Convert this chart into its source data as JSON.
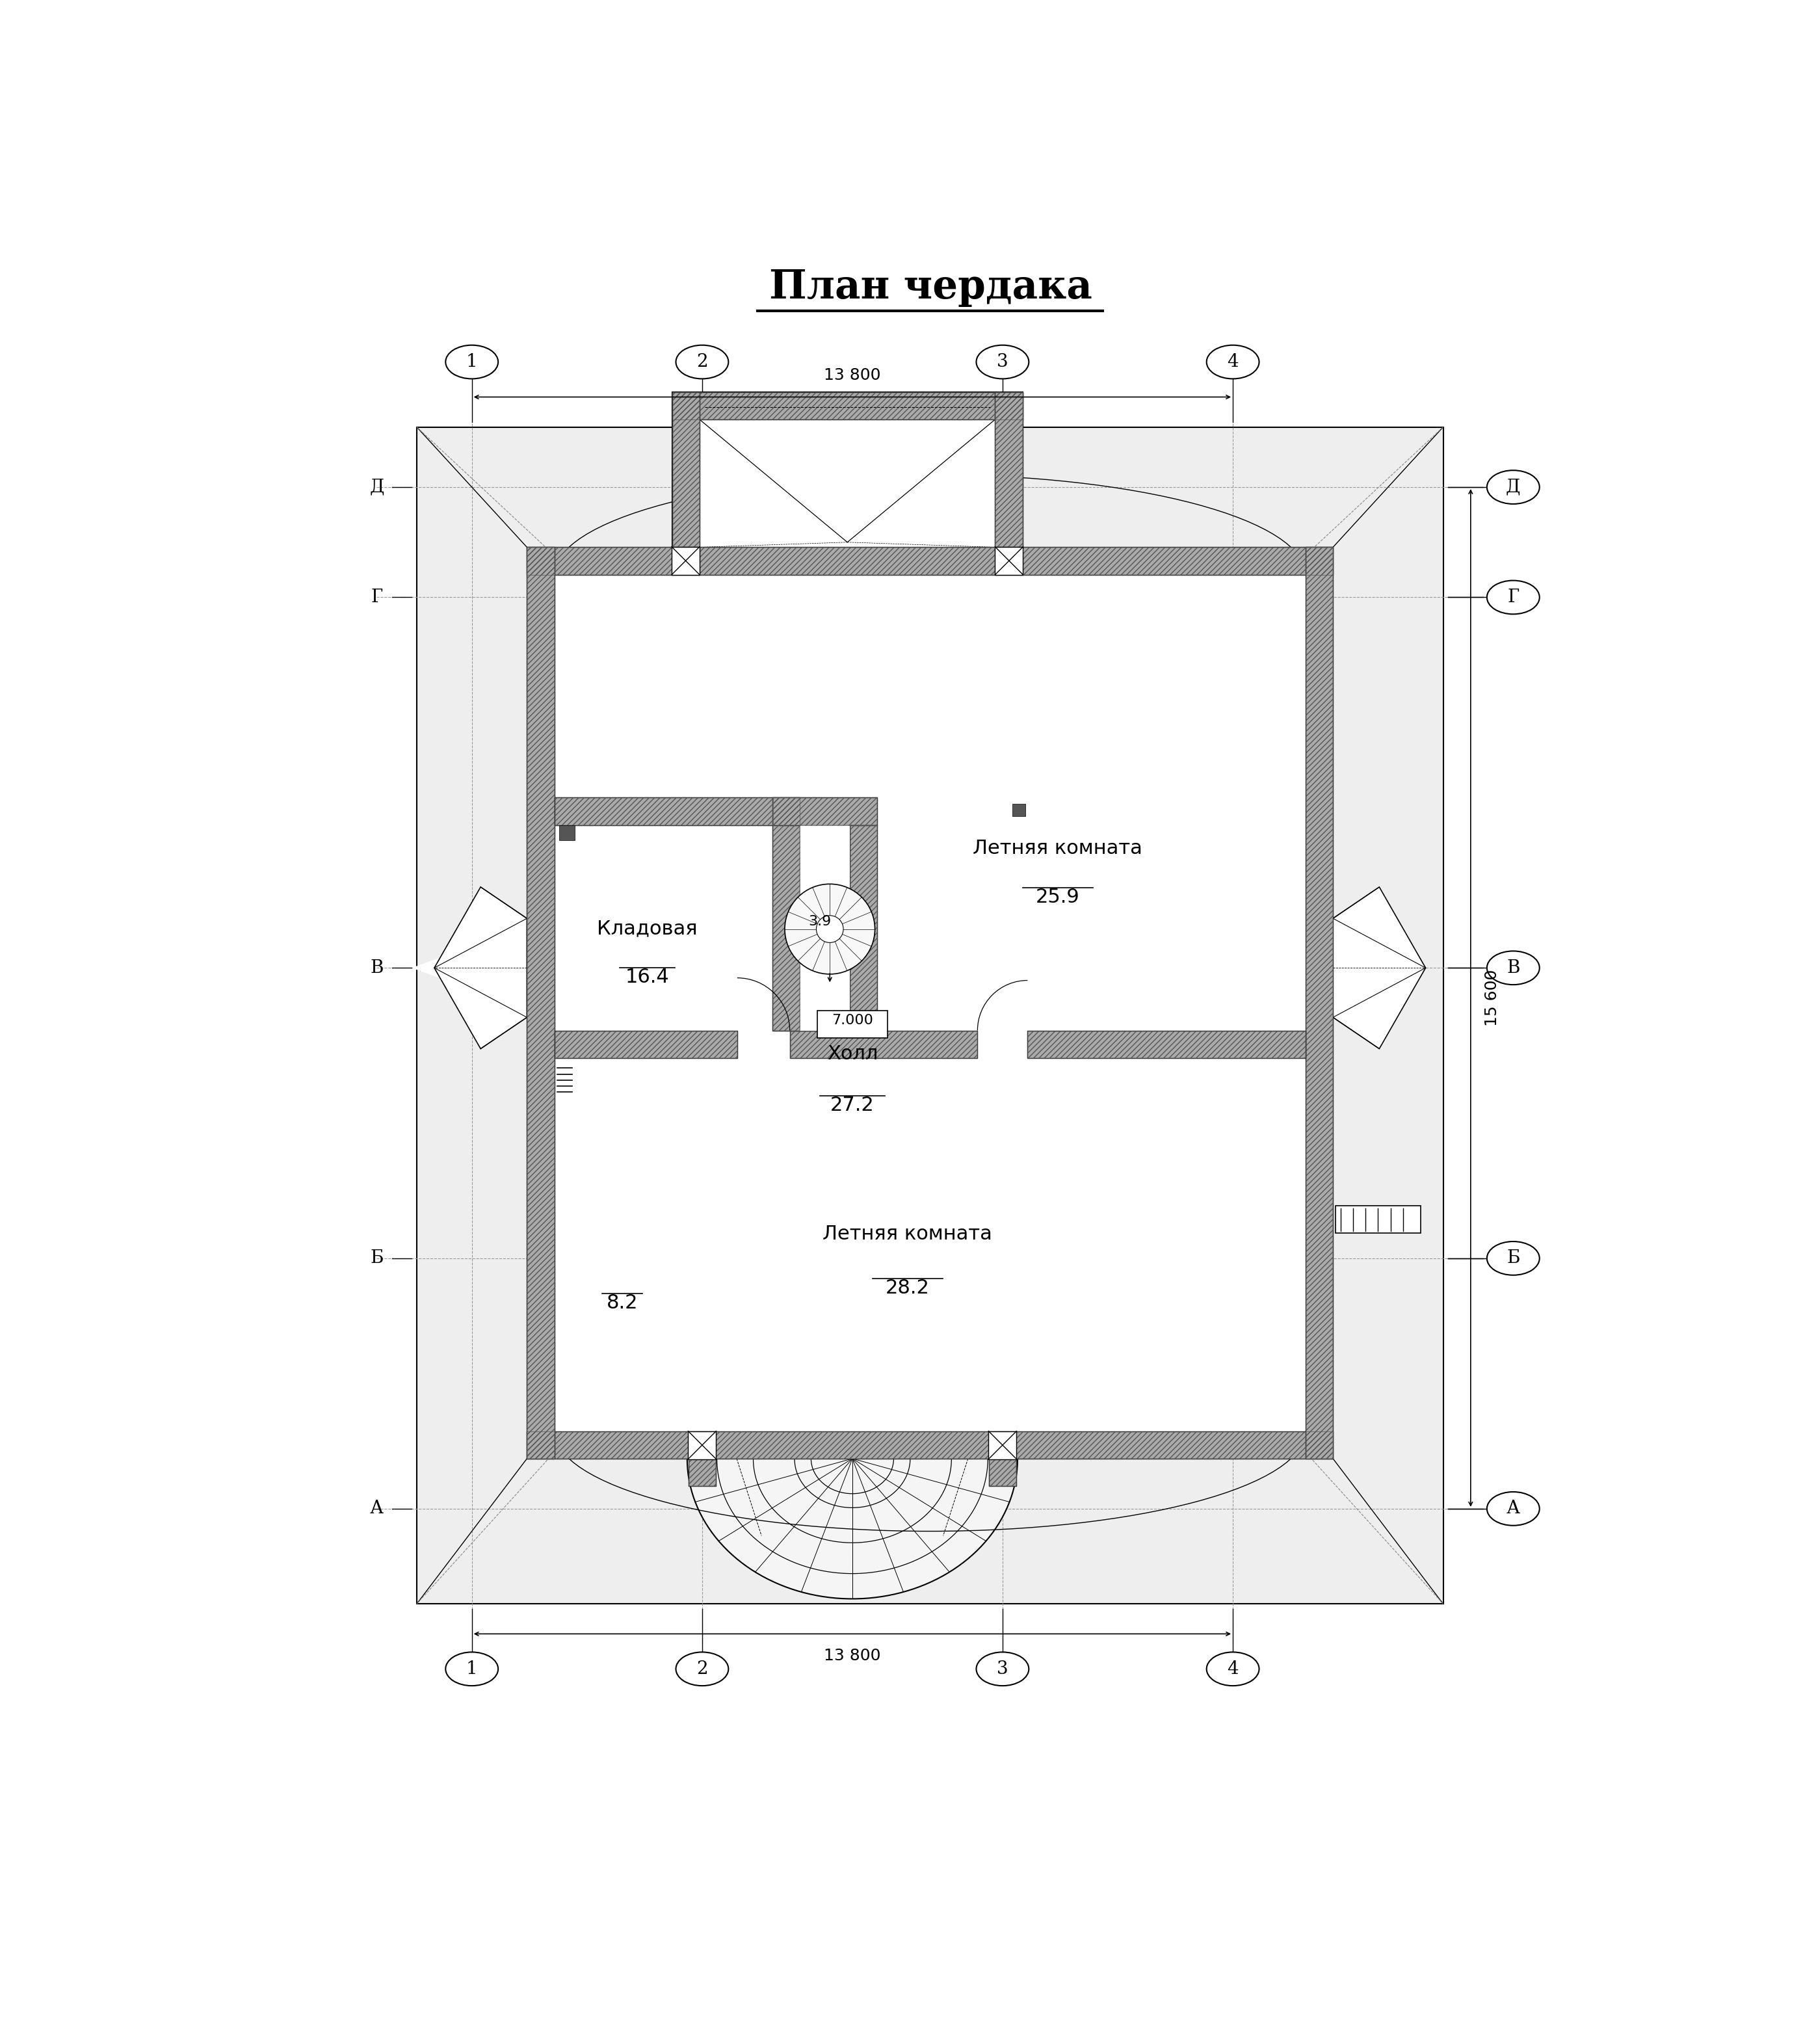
{
  "title": "План чердака",
  "bg_color": "#ffffff",
  "axis_labels_h": [
    "1",
    "2",
    "3",
    "4"
  ],
  "axis_labels_v": [
    "Д",
    "Г",
    "В",
    "Б",
    "А"
  ],
  "dim_top": "13 800",
  "dim_bottom": "13 800",
  "dim_right": "15 600",
  "room1_name": "Летняя комната",
  "room1_area": "25.9",
  "room2_name": "Кладовая",
  "room2_area": "16.4",
  "room3_name": "Холл",
  "room3_area": "27.2",
  "room3_dim": "7.000",
  "room4_name": "Летняя комната",
  "room4_area": "28.2",
  "room5_area": "8.2",
  "stair_label": "3.9"
}
